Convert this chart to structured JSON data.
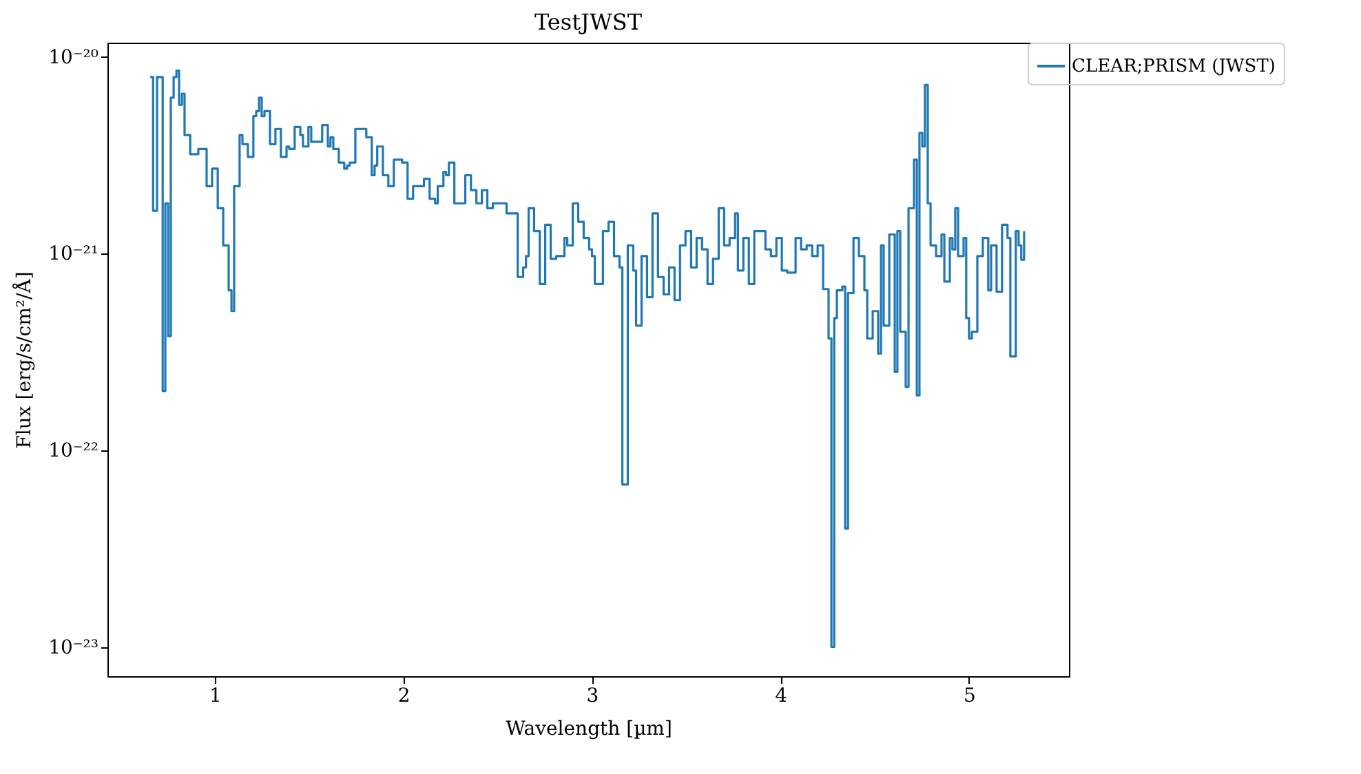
{
  "chart_data": {
    "type": "step",
    "title": "TestJWST",
    "xlabel": "Wavelength [µm]",
    "ylabel": "Flux [erg/s/cm²/Å]",
    "log": "y",
    "grid": false,
    "legend": "top right",
    "line_style": "solid",
    "marker": "none",
    "xlim": [
      0.43,
      5.53
    ],
    "xticks": [
      1,
      2,
      3,
      4,
      5
    ],
    "ylim": [
      7.1e-24,
      1.18e-20
    ],
    "yticks": [
      {
        "value": 1e-23,
        "label": "10⁻²³"
      },
      {
        "value": 1e-22,
        "label": "10⁻²²"
      },
      {
        "value": 1e-21,
        "label": "10⁻²¹"
      },
      {
        "value": 1e-20,
        "label": "10⁻²⁰"
      }
    ],
    "x": [
      0.657,
      0.672,
      0.693,
      0.723,
      0.737,
      0.752,
      0.766,
      0.781,
      0.796,
      0.81,
      0.825,
      0.839,
      0.869,
      0.912,
      0.956,
      0.985,
      1.015,
      1.044,
      1.073,
      1.088,
      1.102,
      1.131,
      1.146,
      1.175,
      1.204,
      1.219,
      1.234,
      1.248,
      1.263,
      1.292,
      1.321,
      1.35,
      1.38,
      1.394,
      1.423,
      1.453,
      1.467,
      1.496,
      1.511,
      1.54,
      1.569,
      1.599,
      1.613,
      1.628,
      1.657,
      1.686,
      1.701,
      1.715,
      1.745,
      1.774,
      1.803,
      1.832,
      1.847,
      1.861,
      1.891,
      1.92,
      1.949,
      1.993,
      2.022,
      2.051,
      2.08,
      2.109,
      2.139,
      2.168,
      2.182,
      2.212,
      2.226,
      2.241,
      2.27,
      2.299,
      2.328,
      2.358,
      2.387,
      2.416,
      2.445,
      2.474,
      2.518,
      2.547,
      2.577,
      2.606,
      2.635,
      2.65,
      2.664,
      2.693,
      2.723,
      2.752,
      2.781,
      2.81,
      2.854,
      2.869,
      2.898,
      2.927,
      2.956,
      2.985,
      3.0,
      3.015,
      3.058,
      3.088,
      3.117,
      3.146,
      3.161,
      3.19,
      3.219,
      3.234,
      3.263,
      3.292,
      3.321,
      3.35,
      3.38,
      3.409,
      3.438,
      3.467,
      3.496,
      3.526,
      3.555,
      3.584,
      3.613,
      3.642,
      3.672,
      3.701,
      3.73,
      3.759,
      3.774,
      3.803,
      3.832,
      3.861,
      3.891,
      3.92,
      3.949,
      3.978,
      4.007,
      4.036,
      4.08,
      4.109,
      4.139,
      4.168,
      4.197,
      4.226,
      4.255,
      4.27,
      4.285,
      4.299,
      4.328,
      4.343,
      4.358,
      4.387,
      4.416,
      4.445,
      4.46,
      4.489,
      4.518,
      4.533,
      4.547,
      4.577,
      4.606,
      4.62,
      4.635,
      4.664,
      4.679,
      4.708,
      4.723,
      4.737,
      4.752,
      4.766,
      4.781,
      4.796,
      4.825,
      4.854,
      4.869,
      4.898,
      4.912,
      4.927,
      4.942,
      4.971,
      4.985,
      5.0,
      5.015,
      5.044,
      5.073,
      5.102,
      5.117,
      5.131,
      5.146,
      5.175,
      5.204,
      5.219,
      5.248,
      5.263,
      5.277,
      5.292
    ],
    "series": [
      {
        "name": "CLEAR;PRISM (JWST)",
        "color": "#1f77b4",
        "values": [
          7.9e-21,
          1.65e-21,
          7.9e-21,
          2e-22,
          1.8e-21,
          3.8e-22,
          6.2e-21,
          7.9e-21,
          8.5e-21,
          5.7e-21,
          6.5e-21,
          4e-21,
          3.2e-21,
          3.4e-21,
          2.2e-21,
          2.7e-21,
          1.7e-21,
          1.1e-21,
          6.5e-22,
          5.1e-22,
          2.2e-21,
          4e-21,
          3.6e-21,
          3.1e-21,
          5e-21,
          5.3e-21,
          6.2e-21,
          5e-21,
          5.3e-21,
          3.6e-21,
          4.3e-21,
          3.1e-21,
          3.5e-21,
          3.4e-21,
          4.4e-21,
          4e-21,
          3.5e-21,
          4.4e-21,
          3.7e-21,
          3.7e-21,
          4.5e-21,
          3.5e-21,
          3.9e-21,
          3.4e-21,
          2.9e-21,
          2.7e-21,
          2.8e-21,
          2.9e-21,
          4.3e-21,
          4.3e-21,
          3.9e-21,
          2.5e-21,
          2.8e-21,
          3.5e-21,
          2.5e-21,
          2.2e-21,
          3e-21,
          2.9e-21,
          1.9e-21,
          2.2e-21,
          2.2e-21,
          2.4e-21,
          1.9e-21,
          1.8e-21,
          2.2e-21,
          2.6e-21,
          2.5e-21,
          2.9e-21,
          1.8e-21,
          1.8e-21,
          2.5e-21,
          2.1e-21,
          1.8e-21,
          2.1e-21,
          1.7e-21,
          1.8e-21,
          1.8e-21,
          1.6e-21,
          1.6e-21,
          7.6e-22,
          8.5e-22,
          9.7e-22,
          1.7e-21,
          1.3e-21,
          7e-22,
          1.4e-21,
          9.4e-22,
          9.7e-22,
          1.2e-21,
          1.1e-21,
          1.8e-21,
          1.45e-21,
          1.2e-21,
          1.05e-21,
          9.7e-22,
          7e-22,
          1.3e-21,
          1.45e-21,
          9.7e-22,
          8.5e-22,
          6.7e-23,
          1.1e-21,
          8.2e-22,
          4.3e-22,
          9.7e-22,
          6e-22,
          1.6e-21,
          7.6e-22,
          6.2e-22,
          8.5e-22,
          5.8e-22,
          1.1e-21,
          1.3e-21,
          8.5e-22,
          1.2e-21,
          1.05e-21,
          7e-22,
          9.4e-22,
          1.7e-21,
          1.1e-21,
          1.2e-21,
          1.6e-21,
          8.2e-22,
          1.2e-21,
          7e-22,
          1.3e-21,
          1.3e-21,
          1.05e-21,
          9.7e-22,
          1.2e-21,
          8.2e-22,
          8e-22,
          1.2e-21,
          1.05e-21,
          1.1e-21,
          9.7e-22,
          1.1e-21,
          6.6e-22,
          3.7e-22,
          1e-23,
          4.7e-22,
          6.5e-22,
          6.8e-22,
          4e-23,
          6.3e-22,
          1.2e-21,
          9.7e-22,
          6.5e-22,
          3.7e-22,
          5.1e-22,
          3.1e-22,
          1.1e-21,
          4.3e-22,
          1.25e-21,
          2.5e-22,
          1.3e-21,
          4e-22,
          2.1e-22,
          1.7e-21,
          3e-21,
          1.9e-22,
          4.1e-21,
          3.5e-21,
          7.2e-21,
          1.8e-21,
          1.1e-21,
          9.7e-22,
          1.25e-21,
          7.2e-22,
          1.2e-21,
          1.05e-21,
          1.7e-21,
          9.7e-22,
          1.2e-21,
          4.7e-22,
          3.7e-22,
          4e-22,
          9.7e-22,
          1.2e-21,
          6.5e-22,
          1.1e-21,
          1.1e-21,
          6.4e-22,
          1.4e-21,
          1.2e-21,
          3e-22,
          1.3e-21,
          1.1e-21,
          9.3e-22,
          1.3e-21
        ]
      }
    ]
  }
}
